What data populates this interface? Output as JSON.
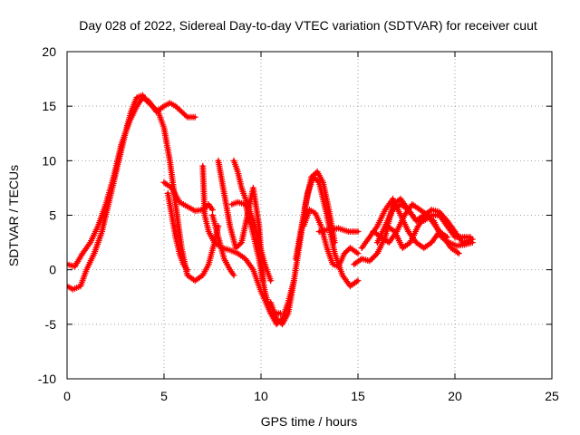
{
  "chart_data": {
    "type": "scatter",
    "title": "Day 028 of 2022, Sidereal Day-to-day VTEC variation (SDTVAR) for receiver cuut",
    "xlabel": "GPS time / hours",
    "ylabel": "SDTVAR / TECUs",
    "xlim": [
      0,
      25
    ],
    "ylim": [
      -10,
      20
    ],
    "xticks": [
      0,
      5,
      10,
      15,
      20,
      25
    ],
    "yticks": [
      -10,
      -5,
      0,
      5,
      10,
      15,
      20
    ],
    "grid": true,
    "marker": "plus",
    "color": "#ff0000",
    "series": [
      {
        "name": "arc-1",
        "x": [
          0.0,
          0.3,
          0.7,
          1.0,
          1.4,
          1.8,
          2.2,
          2.6,
          3.0,
          3.3,
          3.6,
          3.9,
          4.1,
          4.4,
          4.7
        ],
        "y": [
          -1.5,
          -1.8,
          -1.5,
          0.0,
          1.5,
          3.5,
          6.5,
          9.5,
          12.5,
          14.5,
          15.8,
          16.0,
          15.5,
          15.0,
          14.5
        ]
      },
      {
        "name": "arc-2",
        "x": [
          0.0,
          0.4,
          0.8,
          1.2,
          1.6,
          2.0,
          2.4,
          2.8,
          3.2,
          3.6,
          3.9,
          4.2,
          4.6,
          5.0,
          5.3,
          5.6,
          5.9,
          6.2,
          6.6
        ],
        "y": [
          0.5,
          0.3,
          1.5,
          2.5,
          4.0,
          6.0,
          8.5,
          11.5,
          13.5,
          15.0,
          15.8,
          15.5,
          14.5,
          15.0,
          15.3,
          15.0,
          14.5,
          14.0,
          14.0
        ]
      },
      {
        "name": "arc-3",
        "x": [
          4.7,
          5.0,
          5.3,
          5.6,
          5.9,
          6.2,
          6.6,
          7.0,
          7.3,
          7.6,
          7.8
        ],
        "y": [
          14.5,
          13.0,
          10.0,
          6.0,
          2.0,
          -0.5,
          -1.0,
          -0.5,
          0.5,
          2.5,
          4.0
        ]
      },
      {
        "name": "arc-4",
        "x": [
          5.0,
          5.4,
          5.8,
          6.2,
          6.6,
          7.0,
          7.3,
          7.5
        ],
        "y": [
          8.0,
          7.5,
          6.2,
          5.8,
          5.4,
          5.5,
          6.0,
          5.5
        ]
      },
      {
        "name": "arc-5",
        "x": [
          5.2,
          5.4,
          5.6,
          5.8,
          6.0,
          6.2
        ],
        "y": [
          7.0,
          5.0,
          3.0,
          1.5,
          0.5,
          0.0
        ]
      },
      {
        "name": "arc-6",
        "x": [
          7.0,
          7.1,
          7.3,
          7.6,
          8.0,
          8.4,
          8.8,
          9.2,
          9.6,
          10.0,
          10.5,
          11.0
        ],
        "y": [
          9.5,
          5.0,
          3.5,
          2.5,
          2.0,
          1.8,
          1.5,
          1.0,
          0.0,
          -2.0,
          -4.0,
          -4.0
        ]
      },
      {
        "name": "arc-7",
        "x": [
          7.8,
          8.1,
          8.4,
          8.7,
          9.0,
          9.3,
          9.6,
          9.9,
          10.1
        ],
        "y": [
          10.0,
          7.0,
          4.0,
          2.0,
          2.5,
          5.0,
          7.5,
          4.0,
          -1.0
        ]
      },
      {
        "name": "arc-8",
        "x": [
          7.5,
          7.8,
          8.1,
          8.4,
          8.6
        ],
        "y": [
          5.0,
          3.0,
          1.0,
          0.0,
          -0.5
        ]
      },
      {
        "name": "arc-9",
        "x": [
          8.6,
          8.8,
          9.0,
          9.3,
          9.6,
          9.9,
          10.2,
          10.5
        ],
        "y": [
          10.0,
          9.0,
          7.5,
          6.0,
          4.5,
          2.5,
          0.5,
          -1.0
        ]
      },
      {
        "name": "arc-10",
        "x": [
          8.5,
          8.8,
          9.2,
          9.5,
          9.9,
          10.2,
          10.5,
          10.8,
          11.1,
          11.4,
          11.7
        ],
        "y": [
          6.0,
          6.2,
          6.0,
          4.0,
          1.0,
          -2.0,
          -4.0,
          -5.0,
          -4.5,
          -3.0,
          -1.0
        ]
      },
      {
        "name": "arc-11",
        "x": [
          10.5,
          10.8,
          11.1,
          11.4,
          11.7,
          12.0,
          12.3,
          12.6,
          12.9,
          13.2,
          13.5,
          13.8
        ],
        "y": [
          -3.0,
          -4.5,
          -5.0,
          -4.0,
          -1.0,
          2.5,
          6.0,
          8.5,
          9.0,
          8.0,
          5.5,
          2.5
        ]
      },
      {
        "name": "arc-12",
        "x": [
          11.8,
          12.1,
          12.4,
          12.7,
          13.0,
          13.4,
          13.8,
          14.2,
          14.6,
          15.0
        ],
        "y": [
          1.0,
          4.0,
          7.0,
          8.5,
          8.0,
          5.0,
          1.5,
          -0.5,
          -1.5,
          -1.0
        ]
      },
      {
        "name": "arc-13",
        "x": [
          12.2,
          12.5,
          12.8,
          13.1,
          13.4,
          13.7,
          14.0,
          14.3,
          14.6,
          15.0
        ],
        "y": [
          4.0,
          5.5,
          5.2,
          4.0,
          2.0,
          0.5,
          0.3,
          1.5,
          2.0,
          1.5
        ]
      },
      {
        "name": "arc-14",
        "x": [
          13.0,
          13.5,
          14.0,
          14.5,
          15.0
        ],
        "y": [
          3.5,
          3.7,
          3.8,
          3.5,
          3.5
        ]
      },
      {
        "name": "arc-15",
        "x": [
          14.8,
          15.2,
          15.6,
          16.0,
          16.4,
          16.8,
          17.2,
          17.6,
          18.0,
          18.4,
          18.8,
          19.2,
          19.6,
          20.0,
          20.4,
          20.9
        ],
        "y": [
          0.5,
          1.0,
          0.8,
          1.5,
          3.0,
          6.0,
          6.5,
          5.5,
          4.5,
          5.0,
          5.5,
          5.3,
          4.5,
          3.5,
          2.5,
          2.8
        ]
      },
      {
        "name": "arc-16",
        "x": [
          15.2,
          15.6,
          16.0,
          16.4,
          16.8,
          17.2,
          17.6,
          18.0,
          18.4,
          18.8,
          19.2,
          19.6
        ],
        "y": [
          2.0,
          3.0,
          4.0,
          5.5,
          6.5,
          5.0,
          3.5,
          2.5,
          2.0,
          2.5,
          3.5,
          3.0
        ]
      },
      {
        "name": "arc-17",
        "x": [
          16.5,
          16.9,
          17.3,
          17.7,
          18.1,
          18.5,
          18.9,
          19.3,
          19.7,
          20.1,
          20.5,
          20.9
        ],
        "y": [
          4.0,
          3.5,
          2.0,
          2.5,
          4.0,
          5.0,
          4.5,
          3.0,
          2.5,
          2.2,
          2.3,
          2.5
        ]
      },
      {
        "name": "arc-18",
        "x": [
          16.0,
          16.4,
          16.8,
          17.2,
          17.6,
          18.0,
          18.4,
          18.8,
          19.2,
          19.6,
          20.0,
          20.4,
          20.8
        ],
        "y": [
          2.5,
          4.0,
          5.5,
          6.0,
          5.5,
          4.5,
          4.5,
          5.0,
          5.0,
          4.0,
          3.0,
          3.0,
          3.0
        ]
      },
      {
        "name": "arc-19",
        "x": [
          15.8,
          16.2,
          16.6,
          17.0,
          17.4,
          17.8,
          18.2,
          18.6,
          19.0,
          19.4,
          19.8,
          20.2
        ],
        "y": [
          3.5,
          3.0,
          2.5,
          3.5,
          5.0,
          6.0,
          5.5,
          5.0,
          4.0,
          3.0,
          2.0,
          1.5
        ]
      }
    ]
  }
}
